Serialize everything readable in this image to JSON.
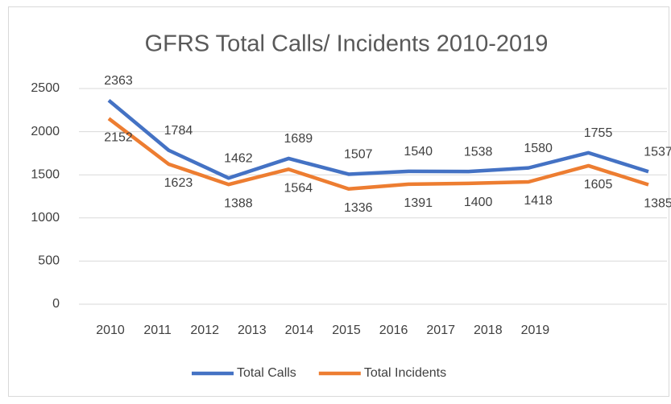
{
  "chart_data": {
    "type": "line",
    "title": "GFRS Total Calls/ Incidents 2010-2019",
    "categories": [
      "2010",
      "2011",
      "2012",
      "2013",
      "2014",
      "2015",
      "2016",
      "2017",
      "2018",
      "2019"
    ],
    "series": [
      {
        "name": "Total Calls",
        "color": "#4472c4",
        "values": [
          2363,
          1784,
          1462,
          1689,
          1507,
          1540,
          1538,
          1580,
          1755,
          1537
        ]
      },
      {
        "name": "Total Incidents",
        "color": "#ed7d31",
        "values": [
          2152,
          1623,
          1388,
          1564,
          1336,
          1391,
          1400,
          1418,
          1605,
          1385
        ]
      }
    ],
    "ylim": [
      0,
      2500
    ],
    "yticks": [
      0,
      500,
      1000,
      1500,
      2000,
      2500
    ],
    "grid": true,
    "legend": "bottom"
  }
}
